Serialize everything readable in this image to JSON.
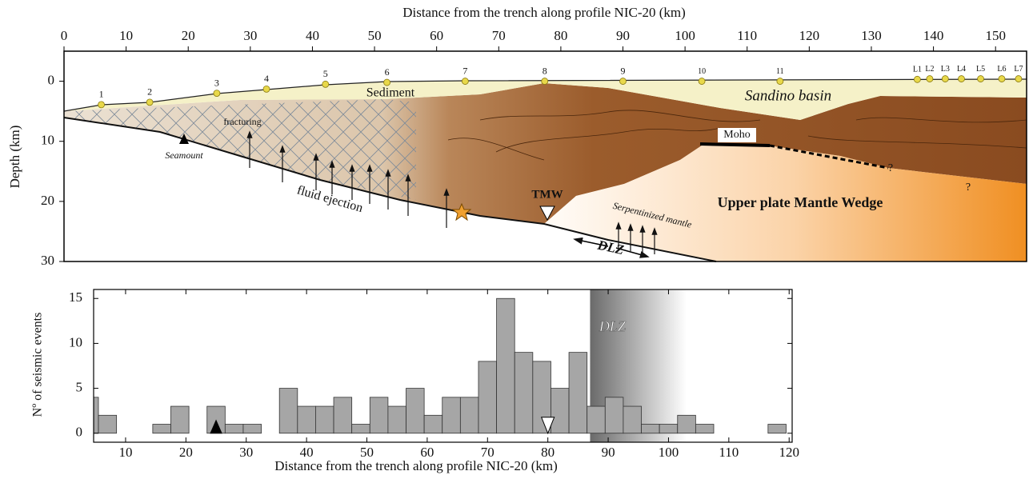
{
  "chart_data": [
    {
      "type": "section",
      "title": "Distance from the trench along profile NIC-20 (km)",
      "y_label": "Depth (km)",
      "xlim": [
        0,
        155
      ],
      "ylim": [
        -5,
        30
      ],
      "xticks": [
        0,
        10,
        20,
        30,
        40,
        50,
        60,
        70,
        80,
        90,
        100,
        110,
        120,
        130,
        140,
        150
      ],
      "yticks": [
        0,
        10,
        20,
        30
      ],
      "stations": {
        "labels": [
          "1",
          "2",
          "3",
          "4",
          "5",
          "6",
          "7",
          "8",
          "9",
          "10",
          "11",
          "L1",
          "L2",
          "L3",
          "L4",
          "L5",
          "L6",
          "L7"
        ],
        "x": [
          6,
          13.8,
          24.6,
          32.6,
          42.1,
          52,
          64.6,
          77.4,
          90,
          102.7,
          115.3,
          137.4,
          139.4,
          141.9,
          144.5,
          147.6,
          151,
          153.7
        ],
        "depth": [
          3.9,
          3.5,
          2,
          1.3,
          0.5,
          0.2,
          0,
          0,
          0,
          0,
          0,
          -0.3,
          -0.4,
          -0.4,
          -0.4,
          -0.4,
          -0.4,
          -0.4
        ],
        "color": "#e8d84a"
      },
      "annotations": [
        "Sediment",
        "Sandino basin",
        "fracturing",
        "Seamount",
        "fluid ejection",
        "Moho",
        "TMW",
        "Serpentinized mantle",
        "DLZ",
        "Upper plate Mantle Wedge",
        "?",
        "?"
      ]
    },
    {
      "type": "histogram",
      "x_label": "Distance from the trench along profile NIC-20 (km)",
      "y_label": "Nº of seismic events",
      "bins": [
        2.5,
        5.5,
        8.5,
        11.5,
        14.5,
        17.5,
        20.5,
        23.5,
        26.5,
        29.5,
        32.5,
        35.5,
        38.5,
        41.5,
        44.5,
        47.5,
        50.5,
        53.5,
        56.5,
        59.5,
        62.5,
        65.5,
        68.5,
        71.5,
        74.5,
        77.5,
        80.5,
        83.5,
        86.5,
        89.5,
        92.5,
        95.5,
        98.5,
        101.5,
        104.5,
        107.5,
        110.5,
        113.5,
        116.5,
        119.5
      ],
      "values": [
        4,
        2,
        0,
        0,
        1,
        3,
        0,
        3,
        1,
        1,
        0,
        5,
        3,
        3,
        4,
        1,
        4,
        3,
        5,
        2,
        4,
        4,
        8,
        15,
        9,
        8,
        5,
        9,
        3,
        4,
        3,
        1,
        1,
        2,
        1,
        0,
        0,
        0,
        1
      ],
      "color": "#a6a6a6",
      "xlim": [
        4.7,
        120.5
      ],
      "ylim": [
        -1,
        16
      ],
      "xticks": [
        10,
        20,
        30,
        40,
        50,
        60,
        70,
        80,
        90,
        100,
        110,
        120
      ],
      "yticks": [
        0,
        5,
        10,
        15
      ],
      "band": {
        "label": "DLZ",
        "x": [
          87,
          103
        ]
      },
      "markers": [
        {
          "x": 25,
          "color": "#000000"
        },
        {
          "x": 80,
          "color": "#ffffff"
        }
      ]
    }
  ]
}
